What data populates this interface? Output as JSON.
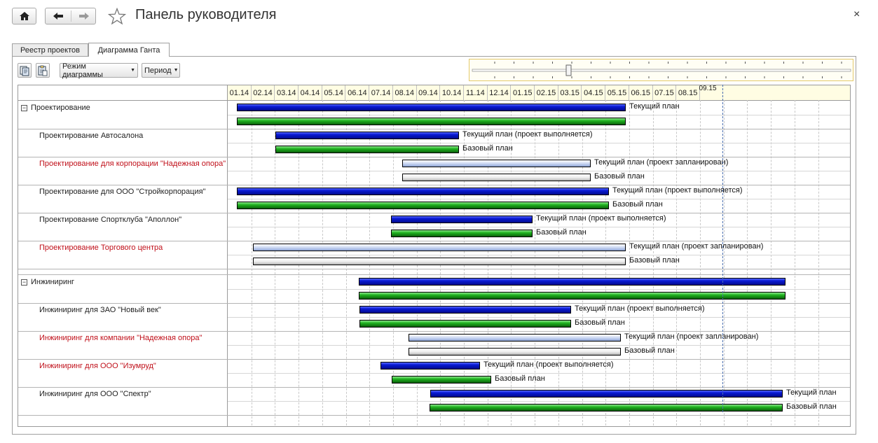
{
  "window": {
    "title": "Панель руководителя",
    "close_glyph": "×",
    "home_icon": "home-icon",
    "star_icon": "star-icon"
  },
  "tabs": [
    {
      "label": "Реестр проектов",
      "active": false
    },
    {
      "label": "Диаграмма Ганта",
      "active": true
    }
  ],
  "toolbar": {
    "mode_label": "Режим диаграммы",
    "period_label": "Период",
    "icon_buttons": [
      "document-copy-icon",
      "document-paste-icon"
    ]
  },
  "timeline": {
    "months": [
      "01.14",
      "02.14",
      "03.14",
      "04.14",
      "05.14",
      "06.14",
      "07.14",
      "08.14",
      "09.14",
      "10.14",
      "11.14",
      "12.14",
      "01.15",
      "02.15",
      "03.15",
      "04.15",
      "05.15",
      "06.15",
      "07.15",
      "08.15"
    ],
    "last_month_line1": "09.",
    "last_month_line2": "15"
  },
  "colors": {
    "current_plan": "#0b1bd6",
    "base_plan": "#1fb31f",
    "planned_current": "#c9d6f2",
    "planned_base": "#ececec",
    "highlight_text": "#c0101a"
  },
  "rows": [
    {
      "name": "Проектирование",
      "group": true,
      "red": false,
      "current": {
        "label": "Текущий план",
        "style": "blue"
      },
      "base": {
        "label": "",
        "style": "green"
      }
    },
    {
      "name": "Проектирование Автосалона",
      "group": false,
      "red": false,
      "current": {
        "label": "Текущий план (проект выполняется)",
        "style": "blue"
      },
      "base": {
        "label": "Базовый план",
        "style": "green"
      }
    },
    {
      "name": "Проектирование для корпорации \"Надежная опора\"",
      "group": false,
      "red": true,
      "current": {
        "label": "Текущий план (проект запланирован)",
        "style": "lblue"
      },
      "base": {
        "label": "Базовый план",
        "style": "white"
      }
    },
    {
      "name": "Проектирование для ООО \"Стройкорпорация\"",
      "group": false,
      "red": false,
      "current": {
        "label": "Текущий план (проект выполняется)",
        "style": "blue"
      },
      "base": {
        "label": "Базовый план",
        "style": "green"
      }
    },
    {
      "name": "Проектирование Спортклуба \"Аполлон\"",
      "group": false,
      "red": false,
      "current": {
        "label": "Текущий план (проект выполняется)",
        "style": "blue"
      },
      "base": {
        "label": "Базовый план",
        "style": "green"
      }
    },
    {
      "name": "Проектирование Торгового центра",
      "group": false,
      "red": true,
      "current": {
        "label": "Текущий план (проект запланирован)",
        "style": "lblue"
      },
      "base": {
        "label": "Базовый план",
        "style": "white"
      }
    },
    {
      "name": "Инжиниринг",
      "group": true,
      "red": false,
      "current": {
        "label": "",
        "style": "blue"
      },
      "base": {
        "label": "",
        "style": "green"
      }
    },
    {
      "name": "Инжиниринг для ЗАО \"Новый век\"",
      "group": false,
      "red": false,
      "current": {
        "label": "Текущий план (проект выполняется)",
        "style": "blue"
      },
      "base": {
        "label": "Базовый план",
        "style": "green"
      }
    },
    {
      "name": "Инжиниринг для компании \"Надежная опора\"",
      "group": false,
      "red": true,
      "current": {
        "label": "Текущий план (проект запланирован)",
        "style": "lblue"
      },
      "base": {
        "label": "Базовый план",
        "style": "white"
      }
    },
    {
      "name": "Инжиниринг для ООО \"Изумруд\"",
      "group": false,
      "red": true,
      "current": {
        "label": "Текущий план (проект выполняется)",
        "style": "blue"
      },
      "base": {
        "label": "Базовый план",
        "style": "green"
      }
    },
    {
      "name": "Инжиниринг для ООО \"Спектр\"",
      "group": false,
      "red": false,
      "current": {
        "label": "Текущий план",
        "style": "blue"
      },
      "base": {
        "label": "Базовый план",
        "style": "green"
      }
    }
  ]
}
